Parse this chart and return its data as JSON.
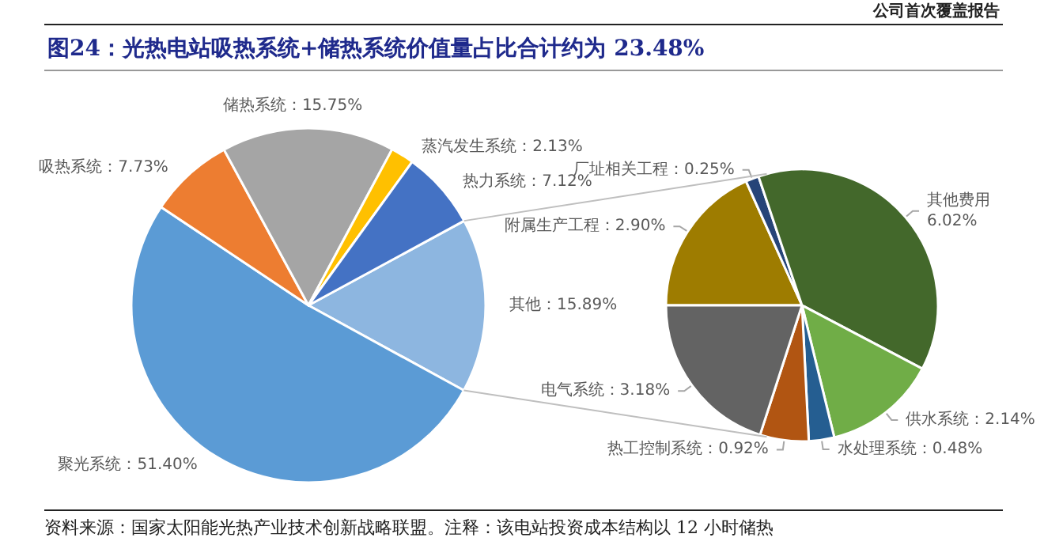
{
  "chart_data": [
    {
      "type": "pie",
      "title": "图24：光热电站吸热系统+储热系统价值量占比合计约为 23.48%",
      "categories": [
        "其他",
        "聚光系统",
        "吸热系统",
        "储热系统",
        "蒸汽发生系统",
        "热力系统"
      ],
      "values": [
        15.89,
        51.4,
        7.73,
        15.75,
        2.13,
        7.12
      ],
      "value_labels": [
        "15.89%",
        "51.40%",
        "7.73%",
        "15.75%",
        "2.13%",
        "7.12%"
      ],
      "colors": [
        "#8db6e0",
        "#5b9bd5",
        "#ed7d31",
        "#a5a5a5",
        "#ffc000",
        "#4472c4"
      ],
      "annotations": [
        "公司首次覆盖报告",
        "资料来源：国家太阳能光热产业技术创新战略联盟。注释：该电站投资成本结构以 12 小时储热"
      ]
    },
    {
      "type": "pie",
      "categories": [
        "附属生产工程",
        "厂址相关工程",
        "其他费用",
        "供水系统",
        "水处理系统",
        "热工控制系统",
        "电气系统"
      ],
      "values": [
        2.9,
        0.25,
        6.02,
        2.14,
        0.48,
        0.92,
        3.18
      ],
      "value_labels": [
        "2.90%",
        "0.25%",
        "6.02%",
        "2.14%",
        "0.48%",
        "0.92%",
        "3.18%"
      ],
      "colors": [
        "#9e7c00",
        "#264478",
        "#43682b",
        "#70ad47",
        "#255e91",
        "#b15512",
        "#636363"
      ]
    }
  ]
}
